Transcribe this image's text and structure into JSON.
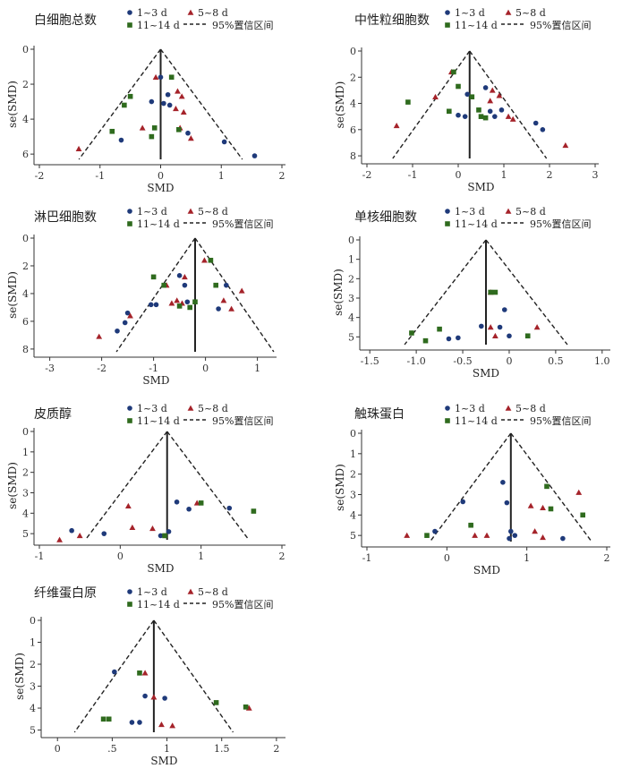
{
  "legend": {
    "g1": "1~3 d",
    "g2": "5~8 d",
    "g3": "11~14 d",
    "ci": "95%置信区间"
  },
  "colors": {
    "g1": "#1f3a7a",
    "g2": "#a5232a",
    "g3": "#2f6b1e",
    "axis": "#333333",
    "line": "#222222"
  },
  "chart_data": [
    {
      "type": "scatter",
      "title": "白细胞总数",
      "xlabel": "SMD",
      "ylabel": "se(SMD)",
      "xlim": [
        -2,
        2
      ],
      "ylim": [
        0,
        6.3
      ],
      "xticks": [
        -2,
        -1,
        0,
        1,
        2
      ],
      "yticks": [
        0,
        2,
        4,
        6
      ],
      "pooled": 0.0,
      "series": [
        {
          "name": "1~3 d",
          "points": [
            [
              1.55,
              6.1
            ],
            [
              1.05,
              5.3
            ],
            [
              0.45,
              4.8
            ],
            [
              -0.65,
              5.2
            ],
            [
              0.05,
              3.1
            ],
            [
              -0.15,
              3.0
            ],
            [
              0.0,
              1.6
            ],
            [
              0.12,
              2.6
            ],
            [
              0.15,
              3.2
            ]
          ]
        },
        {
          "name": "5~8 d",
          "points": [
            [
              -1.35,
              5.7
            ],
            [
              -0.3,
              4.5
            ],
            [
              0.25,
              3.4
            ],
            [
              0.32,
              4.5
            ],
            [
              0.35,
              2.7
            ],
            [
              0.38,
              3.6
            ],
            [
              0.5,
              5.1
            ],
            [
              -0.08,
              1.6
            ],
            [
              0.28,
              2.4
            ]
          ]
        },
        {
          "name": "11~14 d",
          "points": [
            [
              -0.8,
              4.7
            ],
            [
              -0.6,
              3.2
            ],
            [
              -0.1,
              4.5
            ],
            [
              -0.15,
              5.0
            ],
            [
              0.18,
              1.6
            ],
            [
              -0.5,
              2.7
            ],
            [
              0.3,
              4.6
            ]
          ]
        }
      ]
    },
    {
      "type": "scatter",
      "title": "中性粒细胞数",
      "xlabel": "SMD",
      "ylabel": "se(SMD)",
      "xlim": [
        -2,
        3
      ],
      "ylim": [
        0,
        8.2
      ],
      "xticks": [
        -2,
        -1,
        0,
        1,
        2,
        3
      ],
      "yticks": [
        0,
        2,
        4,
        6,
        8
      ],
      "pooled": 0.25,
      "series": [
        {
          "name": "1~3 d",
          "points": [
            [
              1.7,
              5.5
            ],
            [
              1.85,
              6.0
            ],
            [
              0.8,
              5.0
            ],
            [
              0.7,
              4.6
            ],
            [
              0.0,
              4.9
            ],
            [
              0.15,
              5.0
            ],
            [
              0.6,
              2.8
            ],
            [
              0.2,
              3.3
            ],
            [
              0.95,
              4.5
            ]
          ]
        },
        {
          "name": "5~8 d",
          "points": [
            [
              2.35,
              7.2
            ],
            [
              -1.35,
              5.7
            ],
            [
              -0.15,
              1.6
            ],
            [
              0.75,
              3.0
            ],
            [
              1.1,
              5.0
            ],
            [
              1.2,
              5.2
            ],
            [
              0.7,
              3.8
            ],
            [
              0.9,
              3.4
            ],
            [
              -0.5,
              3.5
            ]
          ]
        },
        {
          "name": "11~14 d",
          "points": [
            [
              -1.1,
              3.9
            ],
            [
              -0.2,
              4.6
            ],
            [
              -0.1,
              1.6
            ],
            [
              0.3,
              3.5
            ],
            [
              0.5,
              5.0
            ],
            [
              0.45,
              4.5
            ],
            [
              0.0,
              2.7
            ],
            [
              0.6,
              5.1
            ]
          ]
        }
      ]
    },
    {
      "type": "scatter",
      "title": "淋巴细胞数",
      "xlabel": "SMD",
      "ylabel": "se(SMD)",
      "xlim": [
        -3.2,
        1.3
      ],
      "ylim": [
        0,
        8.2
      ],
      "xticks": [
        -3,
        -2,
        -1,
        0,
        1
      ],
      "yticks": [
        0,
        2,
        4,
        6,
        8
      ],
      "pooled": -0.2,
      "series": [
        {
          "name": "1~3 d",
          "points": [
            [
              -1.7,
              6.7
            ],
            [
              -1.55,
              6.1
            ],
            [
              -1.5,
              5.4
            ],
            [
              -1.05,
              4.8
            ],
            [
              -0.95,
              4.8
            ],
            [
              -0.5,
              2.7
            ],
            [
              -0.4,
              3.4
            ],
            [
              -0.35,
              4.6
            ],
            [
              0.4,
              3.4
            ],
            [
              0.25,
              5.1
            ]
          ]
        },
        {
          "name": "5~8 d",
          "points": [
            [
              -2.05,
              7.1
            ],
            [
              -1.45,
              5.6
            ],
            [
              -0.55,
              4.5
            ],
            [
              -0.65,
              4.7
            ],
            [
              -0.45,
              4.7
            ],
            [
              0.35,
              4.5
            ],
            [
              0.5,
              5.1
            ],
            [
              0.7,
              3.8
            ],
            [
              -0.75,
              3.4
            ],
            [
              -0.02,
              1.6
            ],
            [
              -0.4,
              2.8
            ]
          ]
        },
        {
          "name": "11~14 d",
          "points": [
            [
              -1.0,
              2.8
            ],
            [
              -0.8,
              3.4
            ],
            [
              -0.3,
              5.0
            ],
            [
              -0.2,
              4.6
            ],
            [
              0.1,
              1.6
            ],
            [
              0.2,
              3.4
            ],
            [
              -0.5,
              4.9
            ]
          ]
        }
      ]
    },
    {
      "type": "scatter",
      "title": "单核细胞数",
      "xlabel": "SMD",
      "ylabel": "se(SMD)",
      "xlim": [
        -1.55,
        1.05
      ],
      "ylim": [
        0,
        5.4
      ],
      "xticks": [
        -1.5,
        -1.0,
        -0.5,
        0,
        0.5,
        1.0
      ],
      "tick_labels_x": [
        "-1.5",
        "-1.0",
        "-0.5",
        "0",
        "0.5",
        "1.0"
      ],
      "yticks": [
        0,
        1,
        2,
        3,
        4,
        5
      ],
      "pooled": -0.25,
      "series": [
        {
          "name": "1~3 d",
          "points": [
            [
              -0.65,
              5.1
            ],
            [
              -0.55,
              5.05
            ],
            [
              -0.3,
              4.45
            ],
            [
              -0.1,
              4.5
            ],
            [
              0.0,
              4.95
            ],
            [
              0.2,
              4.95
            ],
            [
              -0.05,
              3.6
            ]
          ]
        },
        {
          "name": "5~8 d",
          "points": [
            [
              -0.2,
              4.5
            ],
            [
              0.3,
              4.5
            ],
            [
              -0.15,
              4.95
            ],
            [
              -0.2,
              2.7
            ]
          ]
        },
        {
          "name": "11~14 d",
          "points": [
            [
              -1.05,
              4.8
            ],
            [
              -0.9,
              5.2
            ],
            [
              -0.75,
              4.6
            ],
            [
              -0.2,
              2.7
            ],
            [
              -0.15,
              2.7
            ],
            [
              0.2,
              4.95
            ]
          ]
        }
      ]
    },
    {
      "type": "scatter",
      "title": "皮质醇",
      "xlabel": "SMD",
      "ylabel": "se(SMD)",
      "xlim": [
        -1,
        2
      ],
      "ylim": [
        0,
        5.3
      ],
      "xticks": [
        -1,
        0,
        1,
        2
      ],
      "yticks": [
        0,
        1,
        2,
        3,
        4,
        5
      ],
      "pooled": 0.58,
      "series": [
        {
          "name": "1~3 d",
          "points": [
            [
              -0.6,
              4.85
            ],
            [
              -0.2,
              5.0
            ],
            [
              0.5,
              5.1
            ],
            [
              0.7,
              3.45
            ],
            [
              0.85,
              3.8
            ],
            [
              0.6,
              4.9
            ],
            [
              1.35,
              3.75
            ]
          ]
        },
        {
          "name": "5~8 d",
          "points": [
            [
              -0.75,
              5.3
            ],
            [
              -0.5,
              5.1
            ],
            [
              0.1,
              3.65
            ],
            [
              0.15,
              4.7
            ],
            [
              0.4,
              4.75
            ],
            [
              0.95,
              3.5
            ]
          ]
        },
        {
          "name": "11~14 d",
          "points": [
            [
              0.55,
              5.1
            ],
            [
              1.0,
              3.5
            ],
            [
              1.65,
              3.9
            ]
          ]
        }
      ]
    },
    {
      "type": "scatter",
      "title": "触珠蛋白",
      "xlabel": "SMD",
      "ylabel": "se(SMD)",
      "xlim": [
        -1,
        2
      ],
      "ylim": [
        0,
        5.3
      ],
      "xticks": [
        -1,
        0,
        1,
        2
      ],
      "yticks": [
        0,
        1,
        2,
        3,
        4,
        5
      ],
      "pooled": 0.8,
      "series": [
        {
          "name": "1~3 d",
          "points": [
            [
              0.7,
              2.4
            ],
            [
              0.75,
              3.4
            ],
            [
              0.2,
              3.35
            ],
            [
              0.3,
              4.5
            ],
            [
              0.8,
              4.8
            ],
            [
              0.85,
              5.0
            ],
            [
              1.45,
              5.15
            ],
            [
              -0.15,
              4.8
            ],
            [
              0.78,
              5.15
            ]
          ]
        },
        {
          "name": "5~8 d",
          "points": [
            [
              -0.5,
              5.0
            ],
            [
              0.35,
              5.0
            ],
            [
              1.05,
              3.55
            ],
            [
              1.2,
              3.65
            ],
            [
              1.65,
              2.9
            ],
            [
              1.1,
              4.8
            ],
            [
              1.2,
              5.1
            ],
            [
              0.5,
              5.0
            ]
          ]
        },
        {
          "name": "11~14 d",
          "points": [
            [
              -0.25,
              5.0
            ],
            [
              0.3,
              4.5
            ],
            [
              1.25,
              2.6
            ],
            [
              1.3,
              3.7
            ],
            [
              1.7,
              4.0
            ]
          ]
        }
      ]
    },
    {
      "type": "scatter",
      "title": "纤维蛋白原",
      "xlabel": "SMD",
      "ylabel": "se(SMD)",
      "xlim": [
        -0.1,
        2.05
      ],
      "ylim": [
        0,
        5.1
      ],
      "xticks": [
        0,
        0.5,
        1,
        1.5,
        2
      ],
      "tick_labels_x": [
        "0",
        ".5",
        "1",
        "1.5",
        "2"
      ],
      "yticks": [
        0,
        1,
        2,
        3,
        4,
        5
      ],
      "pooled": 0.88,
      "series": [
        {
          "name": "1~3 d",
          "points": [
            [
              0.52,
              2.35
            ],
            [
              0.8,
              3.45
            ],
            [
              0.98,
              3.55
            ],
            [
              0.68,
              4.65
            ],
            [
              0.75,
              4.65
            ]
          ]
        },
        {
          "name": "5~8 d",
          "points": [
            [
              0.8,
              2.4
            ],
            [
              0.95,
              4.75
            ],
            [
              1.05,
              4.8
            ],
            [
              1.75,
              4.0
            ],
            [
              0.88,
              3.5
            ]
          ]
        },
        {
          "name": "11~14 d",
          "points": [
            [
              0.42,
              4.5
            ],
            [
              0.47,
              4.5
            ],
            [
              1.45,
              3.75
            ],
            [
              1.72,
              3.95
            ],
            [
              0.75,
              2.4
            ]
          ]
        }
      ]
    }
  ]
}
